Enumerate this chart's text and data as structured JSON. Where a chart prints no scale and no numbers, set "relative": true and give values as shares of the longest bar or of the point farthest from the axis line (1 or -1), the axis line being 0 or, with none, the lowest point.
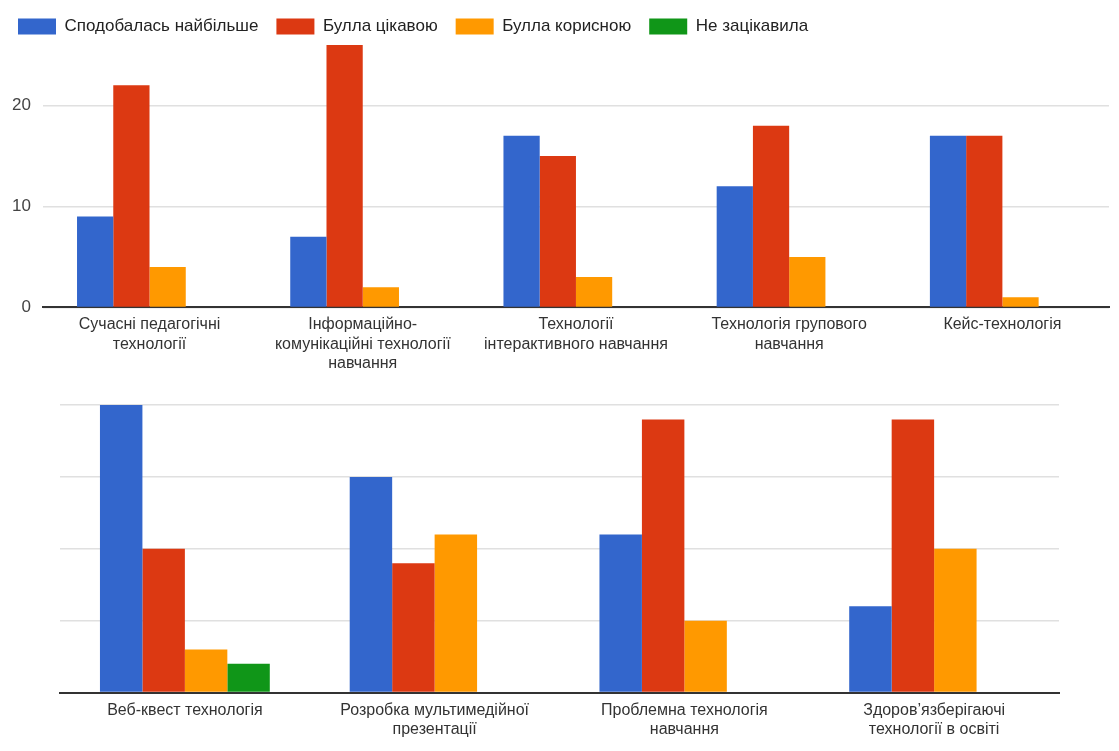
{
  "chart_data": [
    {
      "type": "bar",
      "categories": [
        "Сучасні педагогічні технології",
        "Інформаційно-комунікаційні технології навчання",
        "Технології інтерактивного навчання",
        "Технологія групового навчання",
        "Кейс-технологія"
      ],
      "series": [
        {
          "name": "Сподобалась найбільше",
          "color": "#3366cc",
          "values": [
            9,
            7,
            17,
            12,
            17
          ]
        },
        {
          "name": "Булла цікавою",
          "color": "#dc3912",
          "values": [
            22,
            26,
            15,
            18,
            17
          ]
        },
        {
          "name": "Булла корисною",
          "color": "#ff9900",
          "values": [
            4,
            2,
            3,
            5,
            1
          ]
        },
        {
          "name": "Не зацікавила",
          "color": "#109618",
          "values": [
            0,
            0,
            0,
            0,
            0
          ]
        }
      ],
      "ylim": [
        0,
        26
      ],
      "yticks": [
        0,
        10,
        20
      ],
      "grid": "y",
      "legend": "top left"
    },
    {
      "type": "bar",
      "relative": true,
      "categories": [
        "Веб-квест технологія",
        "Розробка мультимедійної презентації",
        "Проблемна технологія навчання",
        "Здоров’язберігаючі технології в освіті"
      ],
      "series": [
        {
          "color": "#3366cc",
          "values": [
            1,
            0.75,
            0.55,
            0.3
          ]
        },
        {
          "color": "#dc3912",
          "values": [
            0.5,
            0.45,
            0.95,
            0.95
          ]
        },
        {
          "color": "#ff9900",
          "values": [
            0.15,
            0.55,
            0.25,
            0.5
          ]
        },
        {
          "color": "#109618",
          "values": [
            0.1,
            0,
            0,
            0
          ]
        }
      ],
      "grid": "y"
    }
  ]
}
